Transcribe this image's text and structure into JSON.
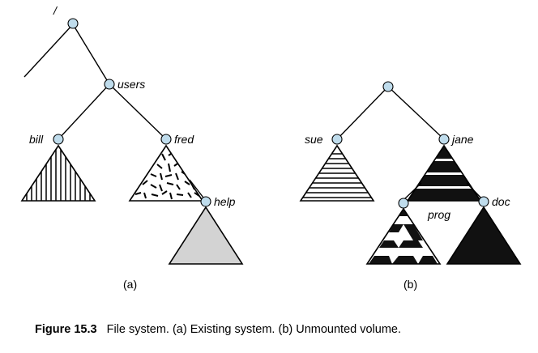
{
  "labels": {
    "root": "/",
    "users": "users",
    "bill": "bill",
    "fred": "fred",
    "help": "help",
    "sue": "sue",
    "jane": "jane",
    "prog": "prog",
    "doc": "doc"
  },
  "sublabels": {
    "a": "(a)",
    "b": "(b)"
  },
  "caption": {
    "number": "Figure 15.3",
    "text": "File system. (a) Existing system. (b) Unmounted volume."
  },
  "colors": {
    "node_fill": "#bfdcec",
    "help_fill": "#d3d3d3",
    "solid_fill": "#111111"
  }
}
